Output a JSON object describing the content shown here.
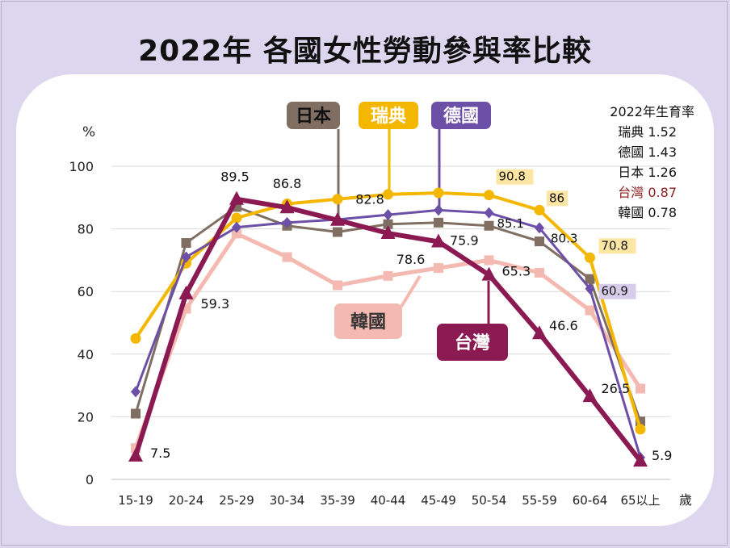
{
  "title": "2022年 各國女性勞動參與率比較",
  "legend_box": {
    "title": "2022年生育率",
    "rows": [
      {
        "name": "瑞典",
        "value": "1.52",
        "color": "#111111"
      },
      {
        "name": "德國",
        "value": "1.43",
        "color": "#111111"
      },
      {
        "name": "日本",
        "value": "1.26",
        "color": "#111111"
      },
      {
        "name": "台灣",
        "value": "0.87",
        "color": "#8b1a1a"
      },
      {
        "name": "韓國",
        "value": "0.78",
        "color": "#111111"
      }
    ]
  },
  "chart_data": {
    "type": "line",
    "title": "2022年 各國女性勞動參與率比較",
    "ylabel": "%",
    "xlabel": "歲",
    "ylim": [
      0,
      100
    ],
    "yticks": [
      0,
      20,
      40,
      60,
      80,
      100
    ],
    "categories": [
      "15-19",
      "20-24",
      "25-29",
      "30-34",
      "35-39",
      "40-44",
      "45-49",
      "50-54",
      "55-59",
      "60-64",
      "65以上"
    ],
    "grid": "horizontal",
    "series": [
      {
        "name": "韓國",
        "color": "#f4b9b0",
        "marker": "square",
        "width": 5,
        "values": [
          10,
          54.5,
          78.5,
          71,
          62,
          65,
          67.5,
          70,
          66,
          54,
          29
        ]
      },
      {
        "name": "日本",
        "color": "#7f6e61",
        "marker": "square",
        "width": 3,
        "values": [
          21,
          75.5,
          87,
          81,
          79,
          81.5,
          82,
          81,
          76,
          64,
          18.5
        ]
      },
      {
        "name": "瑞典",
        "color": "#f3b700",
        "marker": "circle",
        "width": 4,
        "values": [
          45,
          69,
          83.5,
          88,
          89.5,
          91,
          91.5,
          90.8,
          86,
          70.8,
          16
        ]
      },
      {
        "name": "德國",
        "color": "#6c4fa6",
        "marker": "diamond",
        "width": 3,
        "values": [
          28,
          71,
          80.5,
          82,
          83,
          84.5,
          86,
          85.1,
          80.3,
          60.9,
          7
        ]
      },
      {
        "name": "台灣",
        "color": "#8b1a52",
        "marker": "triangle",
        "width": 6,
        "values": [
          7.5,
          59.3,
          89.5,
          86.8,
          82.8,
          78.6,
          75.9,
          65.3,
          46.6,
          26.5,
          5.9
        ]
      }
    ],
    "data_labels": [
      {
        "series": "台灣",
        "index": 0,
        "text": "7.5"
      },
      {
        "series": "台灣",
        "index": 1,
        "text": "59.3"
      },
      {
        "series": "台灣",
        "index": 2,
        "text": "89.5"
      },
      {
        "series": "台灣",
        "index": 3,
        "text": "86.8"
      },
      {
        "series": "台灣",
        "index": 4,
        "text": "82.8"
      },
      {
        "series": "台灣",
        "index": 5,
        "text": "78.6"
      },
      {
        "series": "台灣",
        "index": 6,
        "text": "75.9"
      },
      {
        "series": "台灣",
        "index": 7,
        "text": "65.3"
      },
      {
        "series": "台灣",
        "index": 8,
        "text": "46.6"
      },
      {
        "series": "台灣",
        "index": 9,
        "text": "26.5"
      },
      {
        "series": "台灣",
        "index": 10,
        "text": "5.9"
      },
      {
        "series": "德國",
        "index": 7,
        "text": "85.1"
      },
      {
        "series": "德國",
        "index": 8,
        "text": "80.3"
      },
      {
        "series": "德國",
        "index": 9,
        "text": "60.9"
      },
      {
        "series": "瑞典",
        "index": 7,
        "text": "90.8"
      },
      {
        "series": "瑞典",
        "index": 8,
        "text": "86"
      },
      {
        "series": "瑞典",
        "index": 9,
        "text": "70.8"
      }
    ],
    "series_callouts": [
      {
        "series": "日本",
        "text": "日本",
        "bg": "#7f6e61",
        "fg": "#111111"
      },
      {
        "series": "瑞典",
        "text": "瑞典",
        "bg": "#f3b700",
        "fg": "#ffffff"
      },
      {
        "series": "德國",
        "text": "德國",
        "bg": "#6c4fa6",
        "fg": "#ffffff"
      },
      {
        "series": "韓國",
        "text": "韓國",
        "bg": "#f4b9b0",
        "fg": "#333333"
      },
      {
        "series": "台灣",
        "text": "台灣",
        "bg": "#8b1a52",
        "fg": "#ffffff"
      }
    ]
  }
}
